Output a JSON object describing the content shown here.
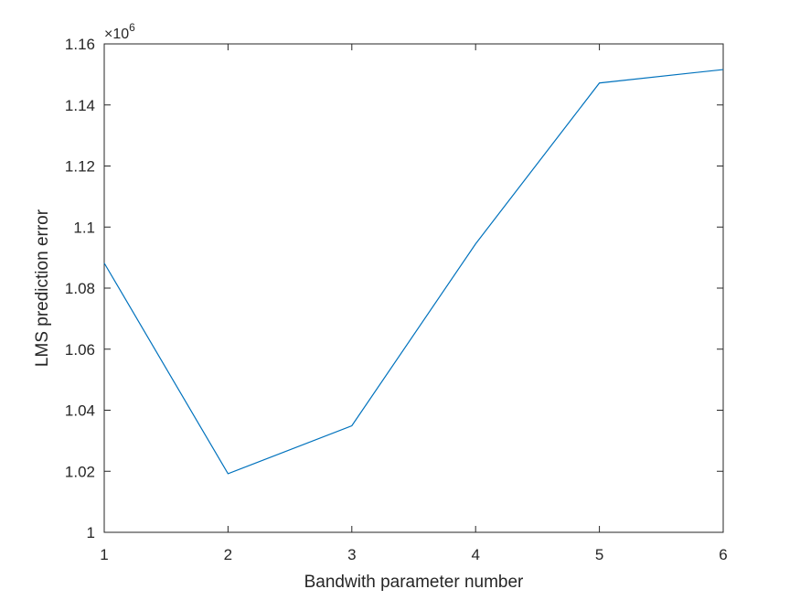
{
  "chart_data": {
    "type": "line",
    "title": "",
    "xlabel": "Bandwith parameter number",
    "ylabel": "LMS prediction error",
    "y_exponent_label": "×10^6",
    "y_exponent_base": "×10",
    "y_exponent_power": "6",
    "xlim": [
      1,
      6
    ],
    "ylim": [
      1.0,
      1.16
    ],
    "xticks": [
      1,
      2,
      3,
      4,
      5,
      6
    ],
    "xtick_labels": [
      "1",
      "2",
      "3",
      "4",
      "5",
      "6"
    ],
    "yticks": [
      1.0,
      1.02,
      1.04,
      1.06,
      1.08,
      1.1,
      1.12,
      1.14,
      1.16
    ],
    "ytick_labels": [
      "1",
      "1.02",
      "1.04",
      "1.06",
      "1.08",
      "1.1",
      "1.12",
      "1.14",
      "1.16"
    ],
    "grid": false,
    "series": [
      {
        "x": [
          1,
          2,
          3,
          4,
          5,
          6
        ],
        "values": [
          1.0882,
          1.0192,
          1.0349,
          1.0945,
          1.1472,
          1.1516
        ],
        "color": "#0072BD"
      }
    ]
  }
}
